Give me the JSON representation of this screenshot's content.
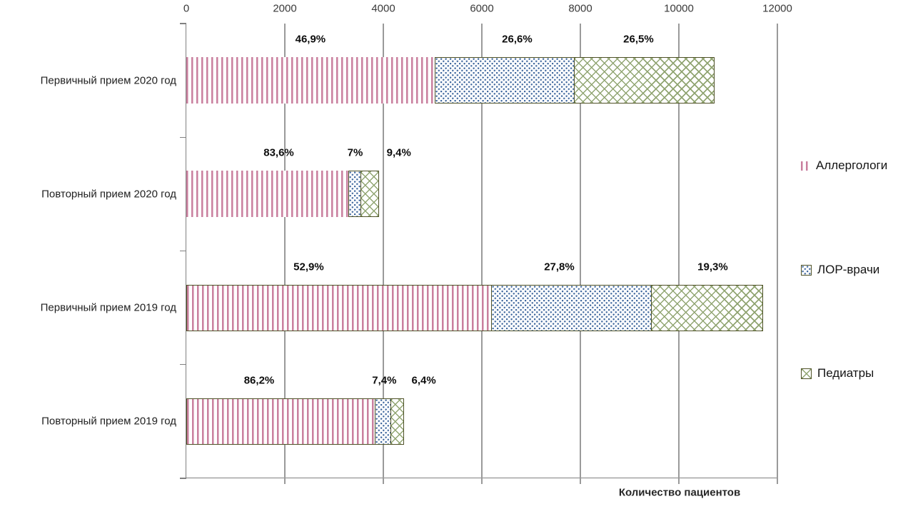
{
  "chart_data": {
    "type": "bar",
    "orientation": "horizontal-stacked",
    "title": "",
    "xlabel": "Количество пациентов",
    "ylabel": "",
    "x_ticks": [
      0,
      2000,
      4000,
      6000,
      8000,
      10000,
      12000
    ],
    "xlim": [
      0,
      12000
    ],
    "grid": true,
    "legend_position": "right",
    "axis_color": "#808080",
    "grid_color": "#9a9a9a",
    "border_color": "#4f5228",
    "series": [
      {
        "key": "allergists",
        "name": "Аллергологи",
        "color": "#c97f9e",
        "pattern": "pink-vertical-stripes"
      },
      {
        "key": "ent-doctors",
        "name": "ЛОР-врачи",
        "color": "#41699f",
        "pattern": "blue-dots"
      },
      {
        "key": "pediatricians",
        "name": "Педиатры",
        "color": "#91a572",
        "pattern": "green-diagonal-lattice"
      }
    ],
    "rows": [
      {
        "label": "Первичный прием 2020 год",
        "values": [
          5040,
          2860,
          2850
        ],
        "percent_labels": [
          "46,9%",
          "26,6%",
          "26,5%"
        ],
        "pink_border": false,
        "label_dx": [
          0,
          17,
          -10
        ]
      },
      {
        "label": "Повторный прием 2020 год",
        "values": [
          3290,
          275,
          370
        ],
        "percent_labels": [
          "83,6%",
          "7%",
          "9,4%"
        ],
        "pink_border": false,
        "label_dx": [
          16,
          0,
          39
        ]
      },
      {
        "label": "Первичный прием 2019 год",
        "values": [
          6215,
          3265,
          2270
        ],
        "percent_labels": [
          "52,9%",
          "27,8%",
          "19,3%"
        ],
        "pink_border": true,
        "label_dx": [
          -43,
          -19,
          5
        ]
      },
      {
        "label": "Повторный прием 2019 год",
        "values": [
          3855,
          330,
          285
        ],
        "percent_labels": [
          "86,2%",
          "7,4%",
          "6,4%"
        ],
        "pink_border": true,
        "label_dx": [
          -31,
          0,
          34
        ]
      }
    ]
  }
}
